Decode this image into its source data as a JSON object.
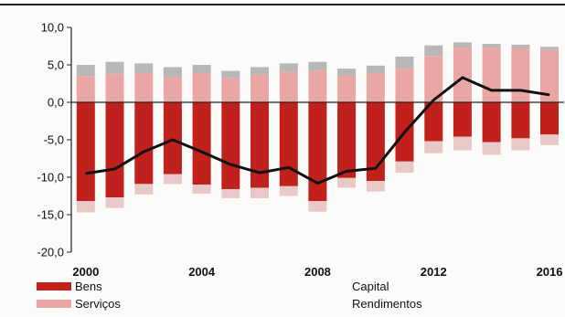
{
  "chart_data": {
    "type": "bar",
    "stacked": true,
    "x": [
      2000,
      2001,
      2002,
      2003,
      2004,
      2005,
      2006,
      2007,
      2008,
      2009,
      2010,
      2011,
      2012,
      2013,
      2014,
      2015,
      2016
    ],
    "x_tick_labels": [
      "2000",
      "2004",
      "2008",
      "2012",
      "2016"
    ],
    "y_tick_labels": [
      "10,0",
      "5,0",
      "0,0",
      "-5,0",
      "-10,0",
      "-15,0",
      "-20,0"
    ],
    "ylim": [
      -20,
      10
    ],
    "grid": false,
    "legend_position": "bottom",
    "series": [
      {
        "name": "Bens",
        "kind": "bar",
        "color": "#c0211d",
        "values": [
          -13.2,
          -12.7,
          -10.9,
          -9.6,
          -11.0,
          -11.6,
          -11.4,
          -11.2,
          -13.2,
          -10.1,
          -10.5,
          -7.9,
          -5.2,
          -4.6,
          -5.3,
          -4.8,
          -4.3
        ]
      },
      {
        "name": "Serviços",
        "kind": "bar",
        "color": "#e9a6a4",
        "values": [
          3.5,
          3.8,
          3.9,
          3.4,
          3.9,
          3.2,
          3.7,
          4.1,
          4.2,
          3.6,
          3.9,
          4.5,
          6.2,
          7.3,
          7.3,
          7.2,
          7.0
        ]
      },
      {
        "name": "Capital",
        "kind": "bar",
        "color": "#b9b6b6",
        "values": [
          1.5,
          1.6,
          1.3,
          1.3,
          1.1,
          1.0,
          1.0,
          1.1,
          1.2,
          0.9,
          1.0,
          1.6,
          1.4,
          0.7,
          0.5,
          0.5,
          0.4
        ]
      },
      {
        "name": "Rendimentos",
        "kind": "bar",
        "color": "#e8c9c8",
        "values": [
          -1.5,
          -1.4,
          -1.4,
          -1.3,
          -1.2,
          -1.2,
          -1.4,
          -1.3,
          -1.4,
          -1.3,
          -1.4,
          -1.5,
          -1.6,
          -1.8,
          -1.7,
          -1.6,
          -1.4
        ]
      },
      {
        "name": "",
        "kind": "line",
        "color": "#111111",
        "values": [
          -9.5,
          -8.9,
          -6.6,
          -5.0,
          -6.6,
          -8.3,
          -9.4,
          -8.7,
          -10.8,
          -9.2,
          -8.8,
          -4.0,
          0.3,
          3.3,
          1.6,
          1.6,
          1.0
        ]
      }
    ]
  }
}
